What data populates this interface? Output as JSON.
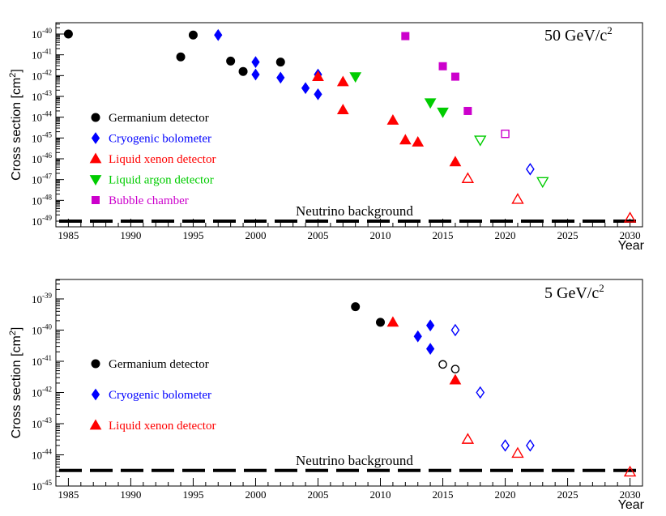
{
  "chart_data": [
    {
      "type": "scatter",
      "title": "50 GeV/c",
      "title_sup": "2",
      "xlabel": "Year",
      "ylabel": "Cross section [cm",
      "ylabel_sup": "2",
      "ylabel_end": "]",
      "xlim": [
        1984,
        2031
      ],
      "ylim_exp": [
        -49.3,
        -39.7
      ],
      "xticks": [
        "1985",
        "1990",
        "1995",
        "2000",
        "2005",
        "2010",
        "2015",
        "2020",
        "2025",
        "2030"
      ],
      "yticks": [
        "10",
        "10",
        "10",
        "10",
        "10",
        "10",
        "10",
        "10",
        "10",
        "10"
      ],
      "ytick_exps": [
        "-40",
        "-41",
        "-42",
        "-43",
        "-44",
        "-45",
        "-46",
        "-47",
        "-48",
        "-49"
      ],
      "ytick_values_exp": [
        -40,
        -41,
        -42,
        -43,
        -44,
        -45,
        -46,
        -47,
        -48,
        -49
      ],
      "neutrino_background": {
        "label": "Neutrino background",
        "exp": -49
      },
      "legend": [
        "Germanium detector",
        "Cryogenic bolometer",
        "Liquid xenon detector",
        "Liquid argon detector",
        "Bubble chamber"
      ],
      "series": [
        {
          "name": "Germanium detector",
          "color": "#000000",
          "marker": "circle",
          "points": [
            [
              1985,
              -40.0,
              true
            ],
            [
              1994,
              -41.1,
              true
            ],
            [
              1995,
              -40.05,
              true
            ],
            [
              1998,
              -41.3,
              true
            ],
            [
              1999,
              -41.8,
              true
            ],
            [
              2002,
              -41.35,
              true
            ]
          ]
        },
        {
          "name": "Cryogenic bolometer",
          "color": "#0000ff",
          "marker": "diamond",
          "points": [
            [
              1997,
              -40.05,
              true
            ],
            [
              2000,
              -41.35,
              true
            ],
            [
              2000,
              -41.95,
              true
            ],
            [
              2002,
              -42.1,
              true
            ],
            [
              2004,
              -42.6,
              true
            ],
            [
              2005,
              -41.95,
              true
            ],
            [
              2005,
              -42.9,
              true
            ],
            [
              2022,
              -46.5,
              false
            ]
          ]
        },
        {
          "name": "Liquid xenon detector",
          "color": "#ff0000",
          "marker": "triangle-up",
          "points": [
            [
              2005,
              -42.05,
              true
            ],
            [
              2007,
              -42.3,
              true
            ],
            [
              2007,
              -43.65,
              true
            ],
            [
              2011,
              -44.15,
              true
            ],
            [
              2012,
              -45.1,
              true
            ],
            [
              2013,
              -45.2,
              true
            ],
            [
              2016,
              -46.15,
              true
            ],
            [
              2017,
              -46.95,
              false
            ],
            [
              2021,
              -47.95,
              false
            ],
            [
              2030,
              -48.85,
              false
            ]
          ]
        },
        {
          "name": "Liquid argon detector",
          "color": "#00cc00",
          "marker": "triangle-down",
          "points": [
            [
              2008,
              -42.05,
              true
            ],
            [
              2014,
              -43.3,
              true
            ],
            [
              2015,
              -43.75,
              true
            ],
            [
              2018,
              -45.1,
              false
            ],
            [
              2023,
              -47.1,
              false
            ]
          ]
        },
        {
          "name": "Bubble chamber",
          "color": "#cc00cc",
          "marker": "square",
          "points": [
            [
              2012,
              -40.1,
              true
            ],
            [
              2015,
              -41.55,
              true
            ],
            [
              2016,
              -42.05,
              true
            ],
            [
              2017,
              -43.7,
              true
            ],
            [
              2020,
              -44.8,
              false
            ]
          ]
        }
      ]
    },
    {
      "type": "scatter",
      "title": "5 GeV/c",
      "title_sup": "2",
      "xlabel": "Year",
      "ylabel": "Cross section [cm",
      "ylabel_sup": "2",
      "ylabel_end": "]",
      "xlim": [
        1984,
        2031
      ],
      "ylim_exp": [
        -45.0,
        -38.65
      ],
      "xticks": [
        "1985",
        "1990",
        "1995",
        "2000",
        "2005",
        "2010",
        "2015",
        "2020",
        "2025",
        "2030"
      ],
      "yticks": [
        "10",
        "10",
        "10",
        "10",
        "10",
        "10",
        "10"
      ],
      "ytick_exps": [
        "-39",
        "-40",
        "-41",
        "-42",
        "-43",
        "-44",
        "-45"
      ],
      "ytick_values_exp": [
        -39,
        -40,
        -41,
        -42,
        -43,
        -44,
        -45
      ],
      "neutrino_background": {
        "label": "Neutrino background",
        "exp": -44.5
      },
      "legend": [
        "Germanium detector",
        "Cryogenic bolometer",
        "Liquid xenon detector"
      ],
      "series": [
        {
          "name": "Germanium detector",
          "color": "#000000",
          "marker": "circle",
          "points": [
            [
              2008,
              -39.25,
              true
            ],
            [
              2010,
              -39.75,
              true
            ],
            [
              2015,
              -41.1,
              false
            ],
            [
              2016,
              -41.25,
              false
            ]
          ]
        },
        {
          "name": "Cryogenic bolometer",
          "color": "#0000ff",
          "marker": "diamond",
          "points": [
            [
              2013,
              -40.2,
              true
            ],
            [
              2014,
              -39.85,
              true
            ],
            [
              2014,
              -40.6,
              true
            ],
            [
              2016,
              -40.0,
              false
            ],
            [
              2018,
              -42.0,
              false
            ],
            [
              2020,
              -43.7,
              false
            ],
            [
              2022,
              -43.7,
              false
            ]
          ]
        },
        {
          "name": "Liquid xenon detector",
          "color": "#ff0000",
          "marker": "triangle-up",
          "points": [
            [
              2011,
              -39.75,
              true
            ],
            [
              2016,
              -41.6,
              true
            ],
            [
              2017,
              -43.5,
              false
            ],
            [
              2021,
              -43.95,
              false
            ],
            [
              2030,
              -44.55,
              false
            ]
          ]
        }
      ]
    }
  ]
}
